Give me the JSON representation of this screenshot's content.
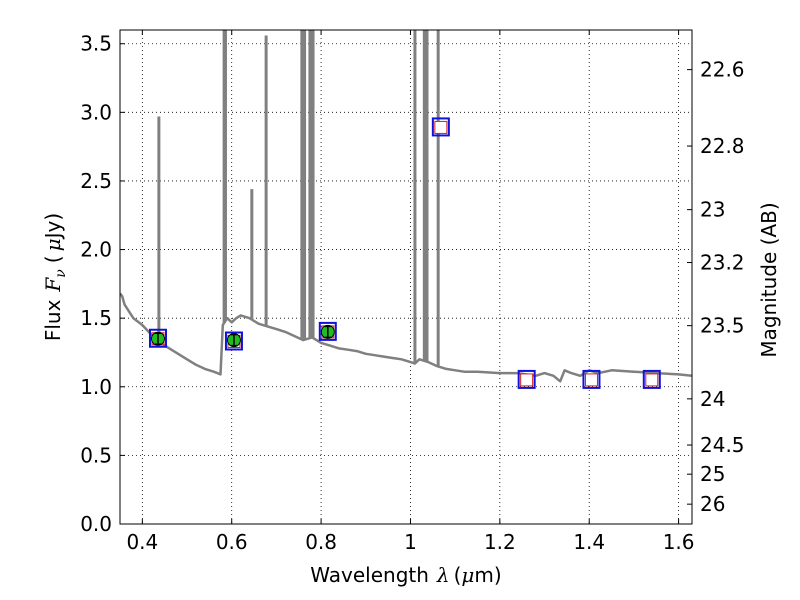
{
  "chart_data": {
    "type": "line",
    "xlabel_text": "Wavelength",
    "xlabel_symbol": "λ",
    "xlabel_unit": "(",
    "xlabel_mu": "μ",
    "xlabel_unit_end": "m)",
    "ylabel_text": "Flux",
    "ylabel_symbol": "F",
    "ylabel_sub": "ν",
    "ylabel_unit_open": "(",
    "ylabel_mu": "μ",
    "ylabel_unit_end": "Jy)",
    "y2label": "Magnitude (AB)",
    "xlim": [
      0.35,
      1.63
    ],
    "ylim": [
      0.0,
      3.6
    ],
    "grid": true,
    "x_ticks": [
      0.4,
      0.6,
      0.8,
      1.0,
      1.2,
      1.4,
      1.6
    ],
    "x_tick_labels": [
      "0.4",
      "0.6",
      "0.8",
      "1",
      "1.2",
      "1.4",
      "1.6"
    ],
    "y_ticks": [
      0.0,
      0.5,
      1.0,
      1.5,
      2.0,
      2.5,
      3.0,
      3.5
    ],
    "y_tick_labels": [
      "0.0",
      "0.5",
      "1.0",
      "1.5",
      "2.0",
      "2.5",
      "3.0",
      "3.5"
    ],
    "y2_ticks": [
      22.6,
      22.8,
      23,
      23.2,
      23.5,
      24,
      24.5,
      25,
      26
    ],
    "y2_tick_labels": [
      "22.6",
      "22.8",
      "23",
      "23.2",
      "23.5",
      "24",
      "24.5",
      "25",
      "26"
    ],
    "colors": {
      "model": "#808080",
      "observed_fill": "#22bb22",
      "model_marker_inner": "#cc2222",
      "model_marker_outer": "#1111dd"
    },
    "series": [
      {
        "type": "line",
        "x": [
          0.35,
          0.355,
          0.36,
          0.37,
          0.38,
          0.4,
          0.42,
          0.45,
          0.48,
          0.5,
          0.52,
          0.54,
          0.56,
          0.575,
          0.58,
          0.59,
          0.6,
          0.61,
          0.62,
          0.64,
          0.66,
          0.68,
          0.7,
          0.72,
          0.74,
          0.76,
          0.78,
          0.8,
          0.82,
          0.84,
          0.86,
          0.88,
          0.9,
          0.92,
          0.94,
          0.96,
          0.98,
          1.0,
          1.01,
          1.02,
          1.04,
          1.06,
          1.08,
          1.1,
          1.12,
          1.15,
          1.2,
          1.24,
          1.28,
          1.3,
          1.32,
          1.335,
          1.345,
          1.36,
          1.38,
          1.4,
          1.42,
          1.45,
          1.5,
          1.55,
          1.6,
          1.63
        ],
        "y": [
          1.68,
          1.66,
          1.6,
          1.55,
          1.5,
          1.45,
          1.38,
          1.3,
          1.24,
          1.2,
          1.16,
          1.13,
          1.11,
          1.09,
          1.45,
          1.5,
          1.47,
          1.5,
          1.52,
          1.5,
          1.46,
          1.44,
          1.42,
          1.4,
          1.37,
          1.34,
          1.36,
          1.32,
          1.3,
          1.28,
          1.27,
          1.26,
          1.24,
          1.23,
          1.22,
          1.21,
          1.2,
          1.18,
          1.17,
          1.2,
          1.18,
          1.15,
          1.13,
          1.12,
          1.11,
          1.11,
          1.1,
          1.1,
          1.08,
          1.1,
          1.08,
          1.04,
          1.12,
          1.1,
          1.08,
          1.12,
          1.1,
          1.12,
          1.11,
          1.1,
          1.09,
          1.08
        ]
      },
      {
        "type": "spikes",
        "x": [
          0.437,
          0.583,
          0.586,
          0.645,
          0.677,
          0.757,
          0.763,
          0.775,
          0.779,
          0.782,
          1.01,
          1.031,
          1.037,
          1.062
        ],
        "y_top": [
          2.97,
          3.6,
          3.6,
          2.44,
          3.56,
          3.6,
          3.6,
          3.6,
          3.6,
          3.6,
          3.6,
          3.6,
          3.6,
          3.6
        ]
      },
      {
        "type": "observed",
        "x": [
          0.435,
          0.605,
          0.815
        ],
        "y": [
          1.35,
          1.34,
          1.4
        ],
        "yerr": [
          0.04,
          0.04,
          0.04
        ]
      },
      {
        "type": "model_photometry",
        "x": [
          0.435,
          0.605,
          0.815,
          1.068,
          1.26,
          1.405,
          1.54
        ],
        "y": [
          1.35,
          1.33,
          1.4,
          2.89,
          1.05,
          1.05,
          1.05
        ]
      }
    ]
  }
}
